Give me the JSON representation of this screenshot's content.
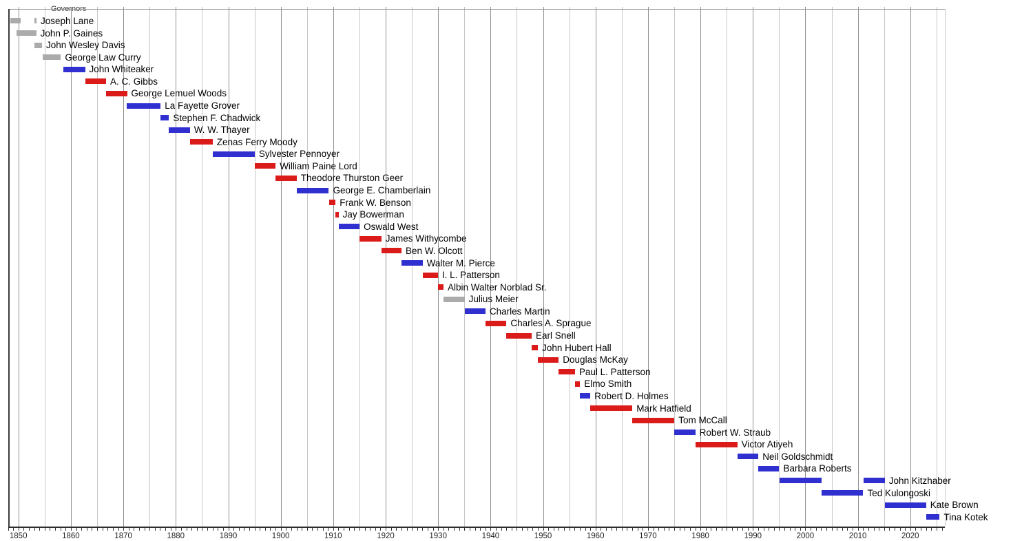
{
  "chart_data": {
    "type": "timeline",
    "title": "Governors",
    "axis": {
      "year_start": 1848,
      "year_end": 2026.6,
      "gridline_step_years": 5,
      "gridline_first": 1850,
      "gridline_last": 2025,
      "minor_tick_step_years": 1,
      "x_tick_labels": [
        "1850",
        "1860",
        "1870",
        "1880",
        "1890",
        "1900",
        "1910",
        "1920",
        "1930",
        "1940",
        "1950",
        "1960",
        "1970",
        "1980",
        "1990",
        "2000",
        "2010",
        "2020"
      ],
      "x_tick_years": [
        1850,
        1860,
        1870,
        1880,
        1890,
        1900,
        1910,
        1920,
        1930,
        1940,
        1950,
        1960,
        1970,
        1980,
        1990,
        2000,
        2010,
        2020
      ]
    },
    "colors": {
      "gray": "#ababab",
      "blue": "#3030d0",
      "red": "#db1a1a"
    },
    "governors": [
      {
        "name": "Joseph Lane",
        "color": "gray",
        "terms": [
          [
            1848.4,
            1850.45
          ],
          [
            1853.05,
            1853.45
          ]
        ]
      },
      {
        "name": "John P. Gaines",
        "color": "gray",
        "terms": [
          [
            1849.6,
            1853.4
          ]
        ]
      },
      {
        "name": "John Wesley Davis",
        "color": "gray",
        "terms": [
          [
            1853.1,
            1854.5
          ]
        ]
      },
      {
        "name": "George Law Curry",
        "color": "gray",
        "terms": [
          [
            1854.6,
            1858.1
          ]
        ]
      },
      {
        "name": "John Whiteaker",
        "color": "blue",
        "terms": [
          [
            1858.5,
            1862.7
          ]
        ]
      },
      {
        "name": "A. C. Gibbs",
        "color": "red",
        "terms": [
          [
            1862.7,
            1866.7
          ]
        ]
      },
      {
        "name": "George Lemuel Woods",
        "color": "red",
        "terms": [
          [
            1866.7,
            1870.7
          ]
        ]
      },
      {
        "name": "La Fayette Grover",
        "color": "blue",
        "terms": [
          [
            1870.7,
            1877.1
          ]
        ]
      },
      {
        "name": "Stephen F. Chadwick",
        "color": "blue",
        "terms": [
          [
            1877.1,
            1878.7
          ]
        ]
      },
      {
        "name": "W. W. Thayer",
        "color": "blue",
        "terms": [
          [
            1878.7,
            1882.7
          ]
        ]
      },
      {
        "name": "Zenas Ferry Moody",
        "color": "red",
        "terms": [
          [
            1882.7,
            1887.03
          ]
        ]
      },
      {
        "name": "Sylvester Pennoyer",
        "color": "blue",
        "terms": [
          [
            1887.03,
            1895.04
          ]
        ]
      },
      {
        "name": "William Paine Lord",
        "color": "red",
        "terms": [
          [
            1895.04,
            1899.02
          ]
        ]
      },
      {
        "name": "Theodore Thurston Geer",
        "color": "red",
        "terms": [
          [
            1899.02,
            1903.04
          ]
        ]
      },
      {
        "name": "George E. Chamberlain",
        "color": "blue",
        "terms": [
          [
            1903.04,
            1909.17
          ]
        ]
      },
      {
        "name": "Frank W. Benson",
        "color": "red",
        "terms": [
          [
            1909.17,
            1910.46
          ]
        ]
      },
      {
        "name": "Jay Bowerman",
        "color": "red",
        "terms": [
          [
            1910.46,
            1911.02
          ]
        ]
      },
      {
        "name": "Oswald West",
        "color": "blue",
        "terms": [
          [
            1911.02,
            1915.03
          ]
        ]
      },
      {
        "name": "James Withycombe",
        "color": "red",
        "terms": [
          [
            1915.03,
            1919.17
          ]
        ]
      },
      {
        "name": "Ben W. Olcott",
        "color": "red",
        "terms": [
          [
            1919.17,
            1923.02
          ]
        ]
      },
      {
        "name": "Walter M. Pierce",
        "color": "blue",
        "terms": [
          [
            1923.02,
            1927.03
          ]
        ]
      },
      {
        "name": "I. L. Patterson",
        "color": "red",
        "terms": [
          [
            1927.03,
            1929.97
          ]
        ]
      },
      {
        "name": "Albin Walter Norblad Sr.",
        "color": "red",
        "terms": [
          [
            1929.97,
            1931.03
          ]
        ]
      },
      {
        "name": "Julius Meier",
        "color": "gray",
        "terms": [
          [
            1931.03,
            1935.04
          ]
        ]
      },
      {
        "name": "Charles Martin",
        "color": "blue",
        "terms": [
          [
            1935.04,
            1939.02
          ]
        ]
      },
      {
        "name": "Charles A. Sprague",
        "color": "red",
        "terms": [
          [
            1939.02,
            1943.03
          ]
        ]
      },
      {
        "name": "Earl Snell",
        "color": "red",
        "terms": [
          [
            1943.03,
            1947.83
          ]
        ]
      },
      {
        "name": "John Hubert Hall",
        "color": "red",
        "terms": [
          [
            1947.83,
            1949.03
          ]
        ]
      },
      {
        "name": "Douglas McKay",
        "color": "red",
        "terms": [
          [
            1949.03,
            1952.99
          ]
        ]
      },
      {
        "name": "Paul L. Patterson",
        "color": "red",
        "terms": [
          [
            1952.99,
            1956.09
          ]
        ]
      },
      {
        "name": "Elmo Smith",
        "color": "red",
        "terms": [
          [
            1956.09,
            1957.04
          ]
        ]
      },
      {
        "name": "Robert D. Holmes",
        "color": "blue",
        "terms": [
          [
            1957.04,
            1959.03
          ]
        ]
      },
      {
        "name": "Mark Hatfield",
        "color": "red",
        "terms": [
          [
            1959.03,
            1967.02
          ]
        ]
      },
      {
        "name": "Tom McCall",
        "color": "red",
        "terms": [
          [
            1967.02,
            1975.04
          ]
        ]
      },
      {
        "name": "Robert W. Straub",
        "color": "blue",
        "terms": [
          [
            1975.04,
            1979.02
          ]
        ]
      },
      {
        "name": "Victor Atiyeh",
        "color": "red",
        "terms": [
          [
            1979.02,
            1987.03
          ]
        ]
      },
      {
        "name": "Neil Goldschmidt",
        "color": "blue",
        "terms": [
          [
            1987.03,
            1991.04
          ]
        ]
      },
      {
        "name": "Barbara Roberts",
        "color": "blue",
        "terms": [
          [
            1991.04,
            1995.02
          ]
        ]
      },
      {
        "name": "John Kitzhaber",
        "color": "blue",
        "terms": [
          [
            1995.02,
            2003.04
          ],
          [
            2011.03,
            2015.13
          ]
        ]
      },
      {
        "name": "Ted Kulongoski",
        "color": "blue",
        "terms": [
          [
            2003.04,
            2011.03
          ]
        ]
      },
      {
        "name": "Kate Brown",
        "color": "blue",
        "terms": [
          [
            2015.13,
            2023.02
          ]
        ]
      },
      {
        "name": "Tina Kotek",
        "color": "blue",
        "terms": [
          [
            2023.02,
            2025.6
          ]
        ]
      }
    ]
  }
}
